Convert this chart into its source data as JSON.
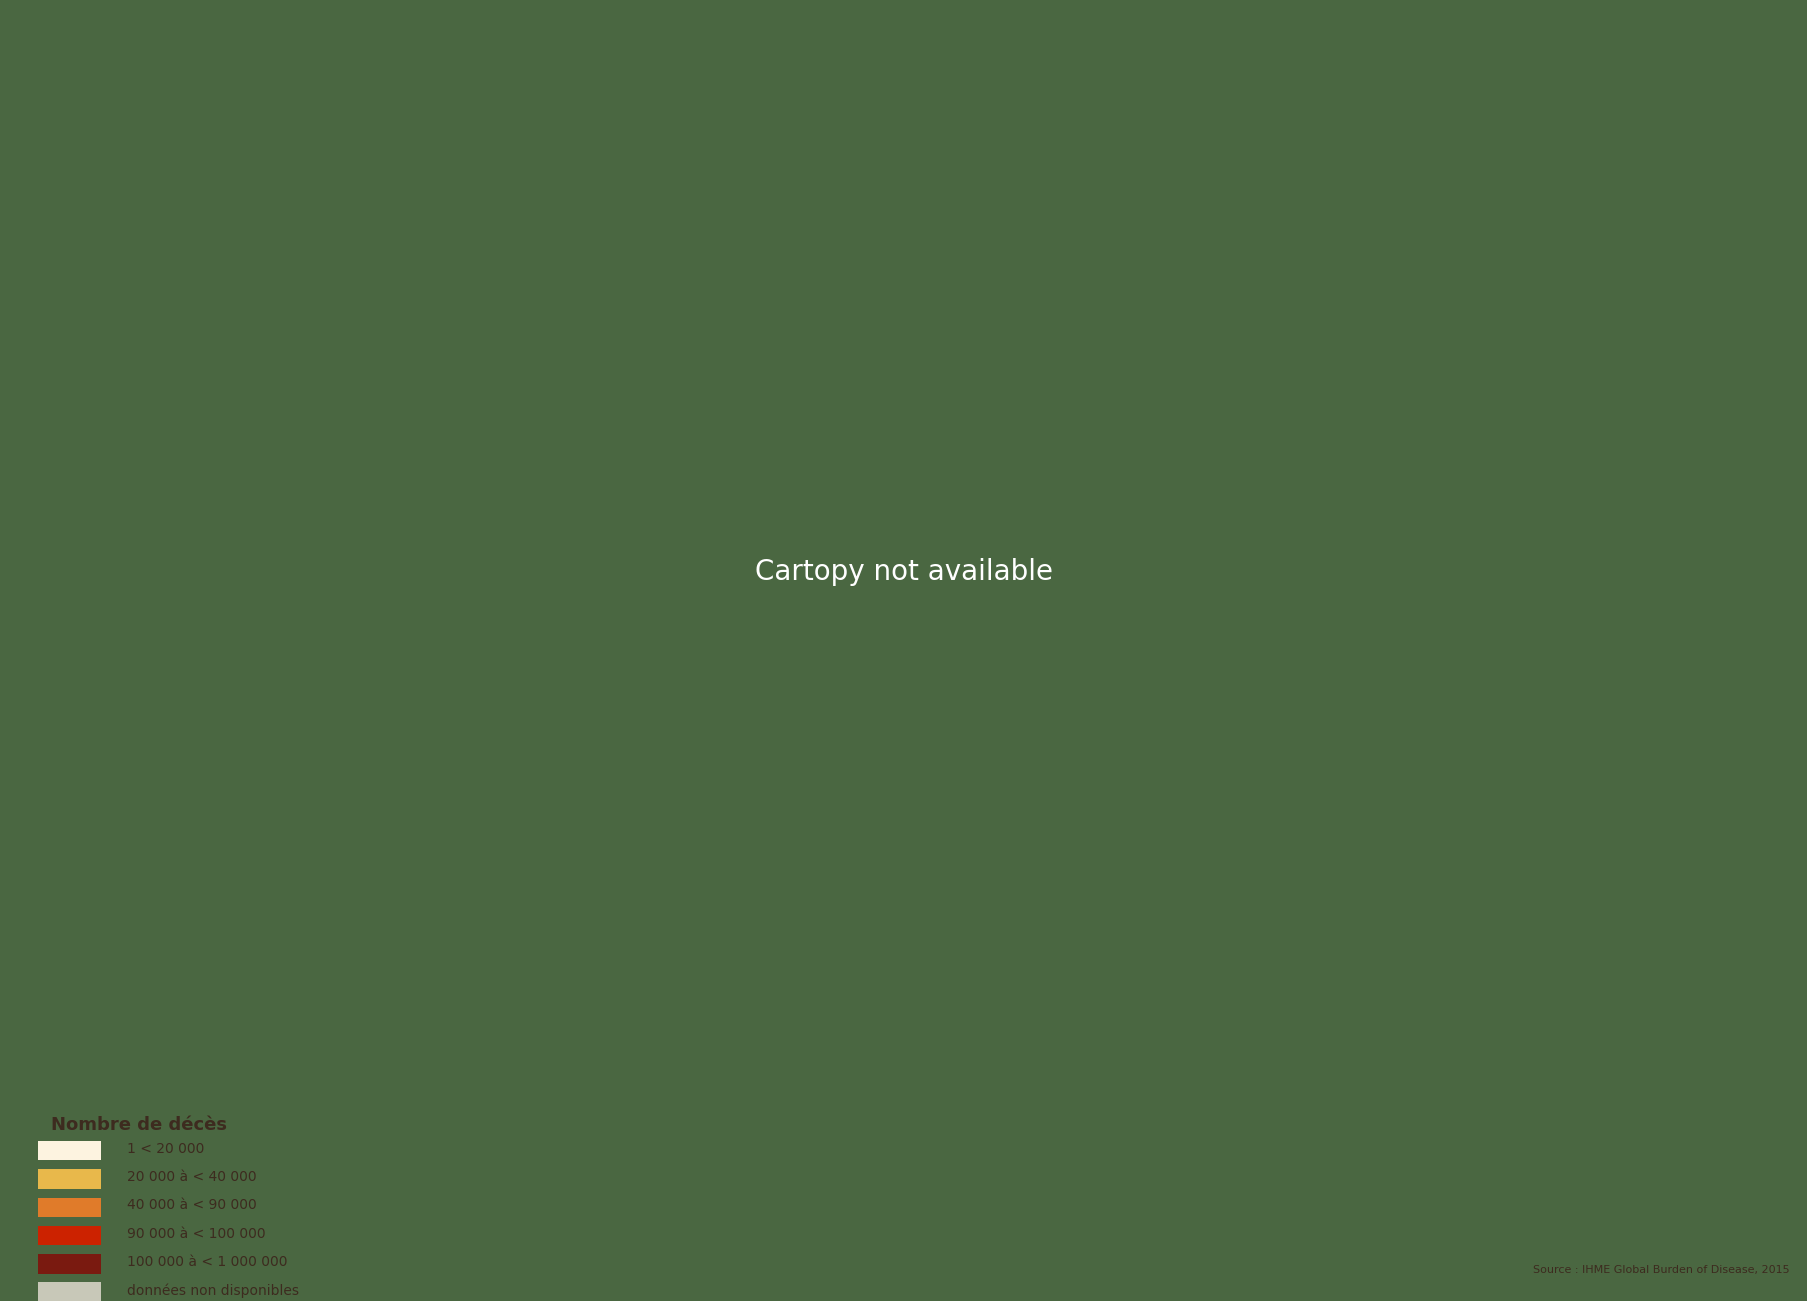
{
  "background_color": "#4a6741",
  "ocean_color": "#4a6741",
  "legend_title": "Nombre de décès",
  "legend_title_color": "#3d2b1f",
  "legend_text_color": "#3d2b1f",
  "source_text": "Source : IHME Global Burden of Disease, 2015",
  "source_color": "#3d2b1f",
  "categories": [
    {
      "label": "1 < 20 000",
      "color": "#fdf3e0"
    },
    {
      "label": "20 000 à < 40 000",
      "color": "#e8b84b"
    },
    {
      "label": "40 000 à < 90 000",
      "color": "#e07b2a"
    },
    {
      "label": "90 000 à < 100 000",
      "color": "#cc2200"
    },
    {
      "label": "100 000 à < 1 000 000",
      "color": "#7a1a10"
    },
    {
      "label": "données non disponibles",
      "color": "#c8c8b8"
    }
  ],
  "country_colors": {
    "Afghanistan": "#e8b84b",
    "Albania": "#fdf3e0",
    "Algeria": "#e07b2a",
    "Angola": "#e8b84b",
    "Argentina": "#fdf3e0",
    "Australia": "#fdf3e0",
    "Austria": "#fdf3e0",
    "Azerbaijan": "#fdf3e0",
    "Bangladesh": "#7a1a10",
    "Belarus": "#fdf3e0",
    "Belgium": "#fdf3e0",
    "Benin": "#fdf3e0",
    "Bolivia": "#fdf3e0",
    "Bosnia and Herzegovina": "#fdf3e0",
    "Brazil": "#e07b2a",
    "Bulgaria": "#fdf3e0",
    "Burkina Faso": "#e8b84b",
    "Cambodia": "#fdf3e0",
    "Cameroon": "#fdf3e0",
    "Canada": "#e07b2a",
    "Central African Republic": "#fdf3e0",
    "Chad": "#fdf3e0",
    "Chile": "#fdf3e0",
    "China": "#7a1a10",
    "Colombia": "#fdf3e0",
    "Democratic Republic of the Congo": "#e8b84b",
    "Republic of Congo": "#fdf3e0",
    "Costa Rica": "#fdf3e0",
    "Croatia": "#fdf3e0",
    "Czech Republic": "#fdf3e0",
    "Denmark": "#fdf3e0",
    "Dominican Republic": "#fdf3e0",
    "Ecuador": "#fdf3e0",
    "Egypt": "#e07b2a",
    "El Salvador": "#fdf3e0",
    "Ethiopia": "#e8b84b",
    "Finland": "#fdf3e0",
    "France": "#fdf3e0",
    "Gabon": "#fdf3e0",
    "Germany": "#e07b2a",
    "Ghana": "#fdf3e0",
    "Greece": "#fdf3e0",
    "Guatemala": "#fdf3e0",
    "Guinea": "#fdf3e0",
    "Haiti": "#fdf3e0",
    "Honduras": "#fdf3e0",
    "Hungary": "#fdf3e0",
    "India": "#7a1a10",
    "Indonesia": "#e07b2a",
    "Iran": "#e07b2a",
    "Iraq": "#e8b84b",
    "Ireland": "#fdf3e0",
    "Israel": "#fdf3e0",
    "Italy": "#e07b2a",
    "Japan": "#e07b2a",
    "Jordan": "#fdf3e0",
    "Kazakhstan": "#fdf3e0",
    "Kenya": "#fdf3e0",
    "Laos": "#fdf3e0",
    "Latvia": "#fdf3e0",
    "Lebanon": "#fdf3e0",
    "Libya": "#fdf3e0",
    "Lithuania": "#fdf3e0",
    "Madagascar": "#fdf3e0",
    "Malawi": "#fdf3e0",
    "Malaysia": "#fdf3e0",
    "Mali": "#fdf3e0",
    "Mauritania": "#fdf3e0",
    "Mexico": "#e8b84b",
    "Mongolia": "#fdf3e0",
    "Morocco": "#e8b84b",
    "Mozambique": "#e8b84b",
    "Myanmar": "#e07b2a",
    "Nepal": "#fdf3e0",
    "Netherlands": "#fdf3e0",
    "New Zealand": "#fdf3e0",
    "Nicaragua": "#fdf3e0",
    "Niger": "#fdf3e0",
    "Nigeria": "#e8b84b",
    "North Korea": "#fdf3e0",
    "Norway": "#fdf3e0",
    "Pakistan": "#7a1a10",
    "Panama": "#fdf3e0",
    "Papua New Guinea": "#fdf3e0",
    "Paraguay": "#fdf3e0",
    "Peru": "#fdf3e0",
    "Philippines": "#e8b84b",
    "Poland": "#e07b2a",
    "Portugal": "#fdf3e0",
    "Romania": "#fdf3e0",
    "Russia": "#cc2200",
    "Rwanda": "#fdf3e0",
    "Saudi Arabia": "#e8b84b",
    "Senegal": "#fdf3e0",
    "Serbia": "#fdf3e0",
    "Sierra Leone": "#fdf3e0",
    "Slovakia": "#fdf3e0",
    "Somalia": "#fdf3e0",
    "South Africa": "#e8b84b",
    "South Korea": "#e07b2a",
    "South Sudan": "#fdf3e0",
    "Spain": "#e07b2a",
    "Sri Lanka": "#fdf3e0",
    "Sudan": "#e8b84b",
    "Sweden": "#fdf3e0",
    "Switzerland": "#fdf3e0",
    "Syria": "#fdf3e0",
    "Taiwan": "#fdf3e0",
    "Tanzania": "#e8b84b",
    "Thailand": "#e07b2a",
    "Togo": "#fdf3e0",
    "Tunisia": "#fdf3e0",
    "Turkey": "#e07b2a",
    "Uganda": "#fdf3e0",
    "Ukraine": "#e07b2a",
    "United Arab Emirates": "#fdf3e0",
    "United Kingdom": "#e07b2a",
    "United States of America": "#e07b2a",
    "Uruguay": "#fdf3e0",
    "Uzbekistan": "#fdf3e0",
    "Venezuela": "#fdf3e0",
    "Vietnam": "#e8b84b",
    "Yemen": "#e8b84b",
    "Zambia": "#fdf3e0",
    "Zimbabwe": "#fdf3e0"
  }
}
